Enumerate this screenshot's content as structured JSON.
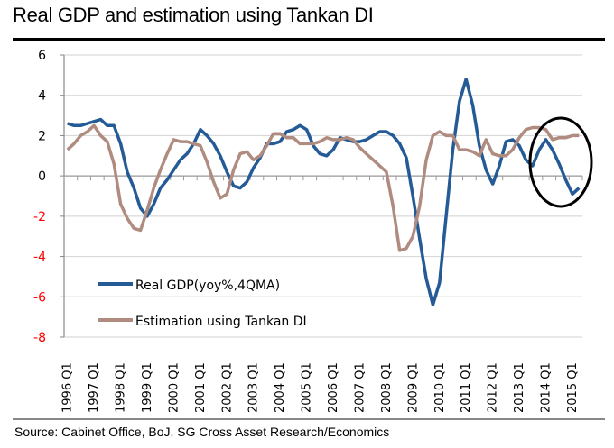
{
  "title": "Real GDP and estimation using Tankan DI",
  "source": "Source: Cabinet Office, BoJ,  SG Cross Asset Research/Economics",
  "chart_data": {
    "type": "line",
    "title": "Real GDP and estimation using Tankan DI",
    "xlabel": "",
    "ylabel": "",
    "ylim": [
      -8,
      6
    ],
    "yticks": [
      6,
      4,
      2,
      0,
      -2,
      -4,
      -6,
      -8
    ],
    "ytick_labels": [
      "6",
      "4",
      "2",
      "0",
      "-2",
      "-4",
      "-6",
      "-8"
    ],
    "negative_tick_color": "#ff0000",
    "x_start": "1996 Q1",
    "x_end": "2015 Q1",
    "x_frequency": "quarterly",
    "xtick_labels": [
      "1996 Q1",
      "1997 Q1",
      "1998 Q1",
      "1999 Q1",
      "2000 Q1",
      "2001 Q1",
      "2002 Q1",
      "2003 Q1",
      "2004 Q1",
      "2005 Q1",
      "2006 Q1",
      "2007 Q1",
      "2008 Q1",
      "2009 Q1",
      "2010 Q1",
      "2011 Q1",
      "2012 Q1",
      "2013 Q1",
      "2014 Q1",
      "2015 Q1"
    ],
    "grid": true,
    "legend": "bottom-left",
    "annotation": "ellipse around 2014–2015 highlighting divergence",
    "series": [
      {
        "name": "Real GDP(yoy%,4QMA)",
        "color": "#245b97",
        "values": [
          2.6,
          2.5,
          2.5,
          2.6,
          2.7,
          2.8,
          2.5,
          2.5,
          1.6,
          0.2,
          -0.6,
          -1.6,
          -2.0,
          -1.4,
          -0.6,
          -0.2,
          0.3,
          0.8,
          1.1,
          1.6,
          2.3,
          2.0,
          1.6,
          1.0,
          0.2,
          -0.5,
          -0.6,
          -0.3,
          0.4,
          0.9,
          1.6,
          1.6,
          1.7,
          2.2,
          2.3,
          2.5,
          2.3,
          1.5,
          1.1,
          1.0,
          1.3,
          1.9,
          1.8,
          1.7,
          1.7,
          1.8,
          2.0,
          2.2,
          2.2,
          2.0,
          1.6,
          0.9,
          -1.0,
          -3.1,
          -5.1,
          -6.4,
          -5.3,
          -2.0,
          1.3,
          3.7,
          4.8,
          3.5,
          1.5,
          0.3,
          -0.4,
          0.5,
          1.7,
          1.8,
          1.5,
          0.8,
          0.5,
          1.3,
          1.8,
          1.3,
          0.6,
          -0.2,
          -0.9,
          -0.6
        ]
      },
      {
        "name": "Estimation using Tankan DI",
        "color": "#b08c80",
        "values": [
          1.3,
          1.6,
          2.0,
          2.2,
          2.5,
          2.0,
          1.7,
          0.6,
          -1.4,
          -2.1,
          -2.6,
          -2.7,
          -1.7,
          -0.6,
          0.3,
          1.1,
          1.8,
          1.7,
          1.7,
          1.6,
          1.5,
          0.7,
          -0.3,
          -1.1,
          -0.9,
          0.3,
          1.1,
          1.2,
          0.8,
          1.0,
          1.5,
          2.1,
          2.1,
          1.9,
          1.9,
          1.6,
          1.6,
          1.6,
          1.7,
          1.9,
          1.8,
          1.8,
          1.9,
          1.8,
          1.4,
          1.1,
          0.8,
          0.5,
          0.2,
          -1.5,
          -3.7,
          -3.6,
          -3.0,
          -1.5,
          0.8,
          2.0,
          2.2,
          2.0,
          2.0,
          1.3,
          1.3,
          1.2,
          1.0,
          1.8,
          1.1,
          1.0,
          1.0,
          1.3,
          1.9,
          2.3,
          2.4,
          2.4,
          2.3,
          1.8,
          1.9,
          1.9,
          2.0,
          2.0
        ]
      }
    ]
  }
}
